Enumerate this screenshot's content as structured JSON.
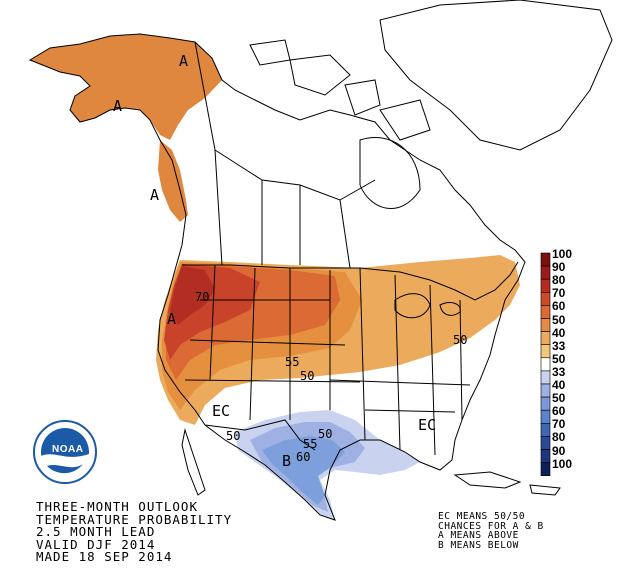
{
  "caption": {
    "line1": "THREE-MONTH OUTLOOK",
    "line2": "TEMPERATURE PROBABILITY",
    "line3": "2.5 MONTH LEAD",
    "line4": "VALID DJF 2014",
    "line5": "MADE 18 SEP 2014"
  },
  "legend_note": {
    "line1": "EC MEANS 50/50",
    "line2": "CHANCES FOR A & B",
    "line3": "A MEANS ABOVE",
    "line4": "B MEANS BELOW"
  },
  "logo": {
    "text": "NOAA"
  },
  "legend": {
    "labels": [
      "100",
      "90",
      "80",
      "70",
      "60",
      "50",
      "40",
      "33",
      "50",
      "33",
      "40",
      "50",
      "60",
      "70",
      "80",
      "90",
      "100"
    ],
    "colors": [
      "#7a1010",
      "#9c1b1b",
      "#b82c20",
      "#cc4a28",
      "#dc6a34",
      "#e58b45",
      "#ecab5c",
      "#f2c77a",
      "#ffffff",
      "#c9d3ef",
      "#9fb1e2",
      "#7d98d8",
      "#5b83c9",
      "#3f66b0",
      "#2a4c98",
      "#1d367c",
      "#0e1f5c"
    ]
  },
  "map_labels": {
    "above_alaska_north": "A",
    "above_alaska_west": "A",
    "above_panhandle": "A",
    "above_northwest": "A",
    "below_gulf": "B",
    "ec_southwest": "EC",
    "ec_southeast": "EC"
  },
  "contour_labels": {
    "c70_northwest": "70",
    "c50_northeast": "50",
    "c55_plains": "55",
    "c50_plains": "50",
    "c50_southwest": "50",
    "c50_texas": "50",
    "c55_texas": "55",
    "c60_texas": "60"
  },
  "colors": {
    "above_33": "#ecab5c",
    "above_40": "#e5903f",
    "above_50": "#dc6a34",
    "above_60": "#c9432a",
    "below_33": "#b9c9ee",
    "below_40": "#8fa9e0",
    "below_50": "#6d94d6",
    "noaa_blue": "#1b5aa6"
  }
}
